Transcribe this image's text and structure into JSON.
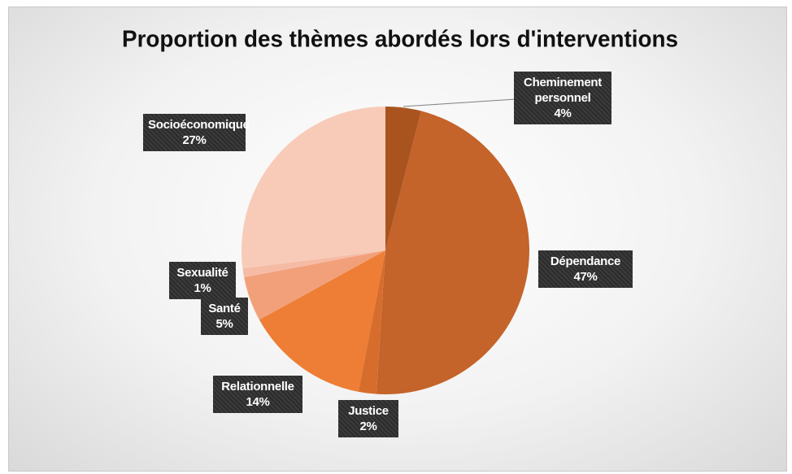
{
  "chart_data": {
    "type": "pie",
    "title": "Proportion des thèmes abordés lors d'interventions",
    "categories": [
      "Cheminement personnel",
      "Dépendance",
      "Justice",
      "Relationnelle",
      "Santé",
      "Sexualité",
      "Socioéconomique"
    ],
    "values": [
      4,
      47,
      2,
      14,
      5,
      1,
      27
    ],
    "value_labels": [
      "4%",
      "47%",
      "2%",
      "14%",
      "5%",
      "1%",
      "27%"
    ],
    "colors": [
      "#a9541f",
      "#c4632a",
      "#d66d2c",
      "#ee7e35",
      "#f2a07a",
      "#f6bba5",
      "#f8cbb9"
    ]
  }
}
